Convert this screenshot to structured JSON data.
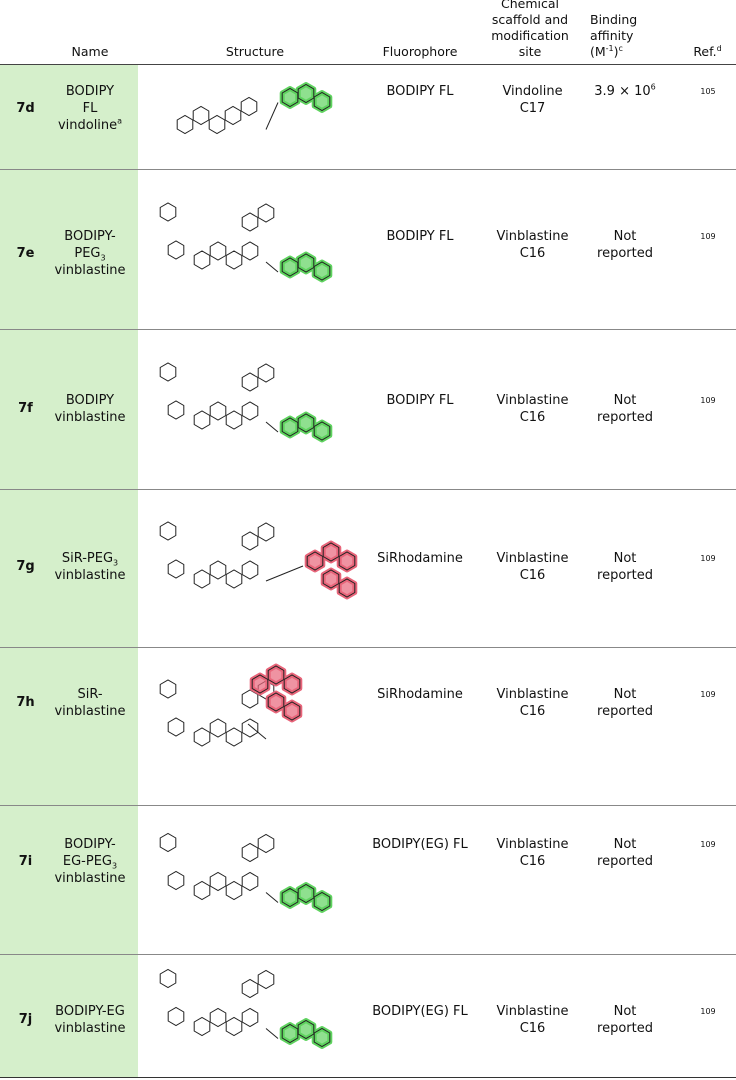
{
  "header": {
    "name": "Name",
    "structure": "Structure",
    "fluorophore": "Fluorophore",
    "scaffold": [
      [
        {
          "text": "Chemical"
        }
      ],
      [
        {
          "text": "scaffold and"
        }
      ],
      [
        {
          "text": "modification"
        }
      ],
      [
        {
          "text": "site"
        }
      ]
    ],
    "affinity": [
      [
        {
          "text": "Binding"
        }
      ],
      [
        {
          "text": "affinity"
        }
      ],
      [
        {
          "text": "(M",
          "sup": "-1"
        },
        {
          "text": ")",
          "sup": "c"
        }
      ]
    ],
    "ref": [
      [
        {
          "text": "Ref.",
          "sup": "d"
        }
      ]
    ]
  },
  "rows": [
    {
      "id": "7d",
      "name": [
        [
          {
            "text": "BODIPY"
          }
        ],
        [
          {
            "text": "FL"
          }
        ],
        [
          {
            "text": "vindoline",
            "sup": "a"
          }
        ]
      ],
      "fluorophore": "BODIPY FL",
      "scaffold": [
        "Vindoline",
        "C17"
      ],
      "affinity": [
        [
          {
            "text": "3.9 × 10",
            "sup": "6"
          }
        ]
      ],
      "ref": "105"
    },
    {
      "id": "7e",
      "name": [
        [
          {
            "text": "BODIPY-"
          }
        ],
        [
          {
            "text": "PEG",
            "sub": "3"
          }
        ],
        [
          {
            "text": "vinblastine"
          }
        ]
      ],
      "fluorophore": "BODIPY FL",
      "scaffold": [
        "Vinblastine",
        "C16"
      ],
      "affinity": [
        [
          {
            "text": "Not"
          }
        ],
        [
          {
            "text": "reported"
          }
        ]
      ],
      "ref": "109"
    },
    {
      "id": "7f",
      "name": [
        [
          {
            "text": "BODIPY"
          }
        ],
        [
          {
            "text": "vinblastine"
          }
        ]
      ],
      "fluorophore": "BODIPY FL",
      "scaffold": [
        "Vinblastine",
        "C16"
      ],
      "affinity": [
        [
          {
            "text": "Not"
          }
        ],
        [
          {
            "text": "reported"
          }
        ]
      ],
      "ref": "109"
    },
    {
      "id": "7g",
      "name": [
        [
          {
            "text": "SiR-PEG",
            "sub": "3"
          }
        ],
        [
          {
            "text": "vinblastine"
          }
        ]
      ],
      "fluorophore": "SiRhodamine",
      "scaffold": [
        "Vinblastine",
        "C16"
      ],
      "affinity": [
        [
          {
            "text": "Not"
          }
        ],
        [
          {
            "text": "reported"
          }
        ]
      ],
      "ref": "109"
    },
    {
      "id": "7h",
      "name": [
        [
          {
            "text": "SiR-"
          }
        ],
        [
          {
            "text": "vinblastine"
          }
        ]
      ],
      "fluorophore": "SiRhodamine",
      "scaffold": [
        "Vinblastine",
        "C16"
      ],
      "affinity": [
        [
          {
            "text": "Not"
          }
        ],
        [
          {
            "text": "reported"
          }
        ]
      ],
      "ref": "109"
    },
    {
      "id": "7i",
      "name": [
        [
          {
            "text": "BODIPY-"
          }
        ],
        [
          {
            "text": "EG-PEG",
            "sub": "3"
          }
        ],
        [
          {
            "text": "vinblastine"
          }
        ]
      ],
      "fluorophore": "BODIPY(EG) FL",
      "scaffold": [
        "Vinblastine",
        "C16"
      ],
      "affinity": [
        [
          {
            "text": "Not"
          }
        ],
        [
          {
            "text": "reported"
          }
        ]
      ],
      "ref": "109"
    },
    {
      "id": "7j",
      "name": [
        [
          {
            "text": "BODIPY-EG"
          }
        ],
        [
          {
            "text": "vinblastine"
          }
        ]
      ],
      "fluorophore": "BODIPY(EG) FL",
      "scaffold": [
        "Vinblastine",
        "C16"
      ],
      "affinity": [
        [
          {
            "text": "Not"
          }
        ],
        [
          {
            "text": "reported"
          }
        ]
      ],
      "ref": "109"
    }
  ]
}
